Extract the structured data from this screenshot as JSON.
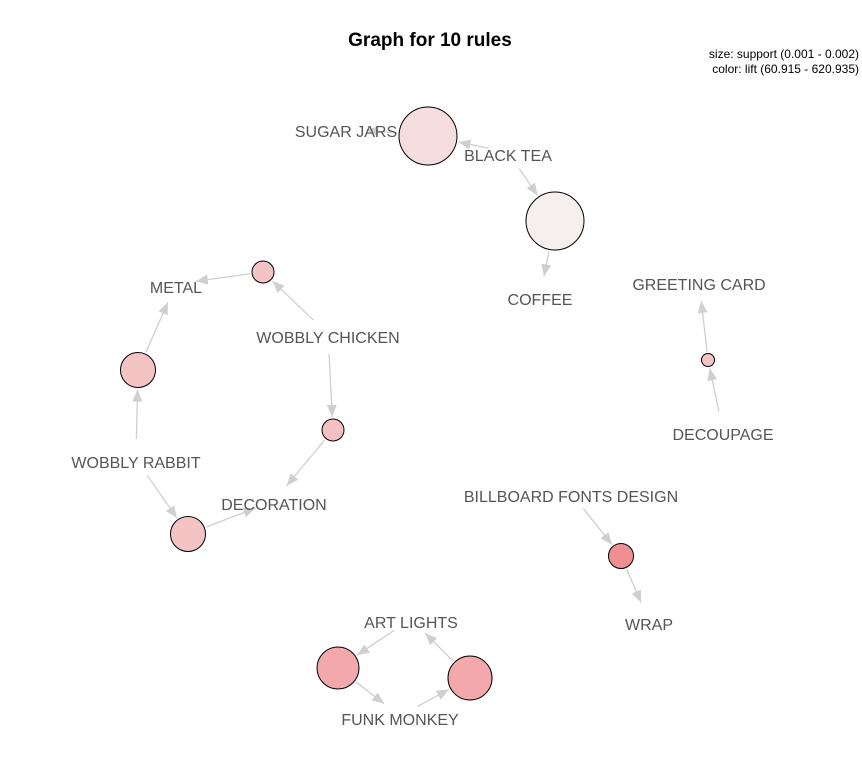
{
  "title": "Graph for 10 rules",
  "legend": {
    "size_line": "size: support (0.001 - 0.002)",
    "color_line": "color: lift (60.915 - 620.935)"
  },
  "items": [
    {
      "id": "sugar-jars",
      "label": "SUGAR JARS"
    },
    {
      "id": "black-tea",
      "label": "BLACK TEA"
    },
    {
      "id": "coffee",
      "label": "COFFEE"
    },
    {
      "id": "greeting-card",
      "label": "GREETING CARD"
    },
    {
      "id": "decoupage",
      "label": "DECOUPAGE"
    },
    {
      "id": "metal",
      "label": "METAL"
    },
    {
      "id": "wobbly-chicken",
      "label": "WOBBLY CHICKEN"
    },
    {
      "id": "wobbly-rabbit",
      "label": "WOBBLY RABBIT"
    },
    {
      "id": "decoration",
      "label": "DECORATION"
    },
    {
      "id": "billboard-fonts-design",
      "label": "BILLBOARD FONTS DESIGN"
    },
    {
      "id": "wrap",
      "label": "WRAP"
    },
    {
      "id": "art-lights",
      "label": "ART LIGHTS"
    },
    {
      "id": "funk-monkey",
      "label": "FUNK MONKEY"
    }
  ],
  "rules": [
    {
      "id": "rule-1",
      "lhs": [
        "black-tea"
      ],
      "rhs": "sugar-jars",
      "color": "#f4dcdf"
    },
    {
      "id": "rule-2",
      "lhs": [
        "black-tea"
      ],
      "rhs": "coffee",
      "color": "#f5efee"
    },
    {
      "id": "rule-3",
      "lhs": [
        "decoupage"
      ],
      "rhs": "greeting-card",
      "color": "#f3c4c6"
    },
    {
      "id": "rule-4",
      "lhs": [
        "wobbly-chicken"
      ],
      "rhs": "metal",
      "color": "#f4c4c4"
    },
    {
      "id": "rule-5",
      "lhs": [
        "wobbly-rabbit"
      ],
      "rhs": "metal",
      "color": "#f4c4c5"
    },
    {
      "id": "rule-6",
      "lhs": [
        "wobbly-chicken"
      ],
      "rhs": "decoration",
      "color": "#f4c1c2"
    },
    {
      "id": "rule-7",
      "lhs": [
        "wobbly-rabbit"
      ],
      "rhs": "decoration",
      "color": "#f4c4c5"
    },
    {
      "id": "rule-8",
      "lhs": [
        "billboard-fonts-design"
      ],
      "rhs": "wrap",
      "color": "#ef8f92"
    },
    {
      "id": "rule-9",
      "lhs": [
        "funk-monkey"
      ],
      "rhs": "art-lights",
      "color": "#f3a9ab"
    },
    {
      "id": "rule-10",
      "lhs": [
        "art-lights"
      ],
      "rhs": "funk-monkey",
      "color": "#f3a9ab"
    }
  ]
}
